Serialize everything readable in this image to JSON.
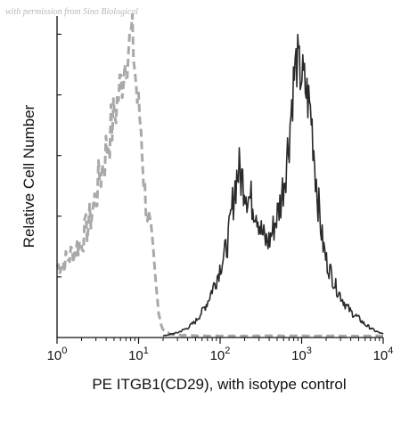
{
  "watermark": "with permission from Sino Biological",
  "chart_data": {
    "type": "line",
    "title": "",
    "xlabel": "PE ITGB1(CD29), with isotype control",
    "ylabel": "Relative Cell Number",
    "xscale": "log",
    "xlim": [
      1,
      10000
    ],
    "ylim": [
      0,
      100
    ],
    "x_tick_labels": [
      {
        "base": "10",
        "exp": "0"
      },
      {
        "base": "10",
        "exp": "1"
      },
      {
        "base": "10",
        "exp": "2"
      },
      {
        "base": "10",
        "exp": "3"
      },
      {
        "base": "10",
        "exp": "4"
      }
    ],
    "y_tick_labels_shown": false,
    "grid": false,
    "legend": "none",
    "series": [
      {
        "style": "dashed",
        "color": "#a9a9a9",
        "x": [
          1.0,
          1.3,
          1.6,
          2.0,
          2.5,
          3.0,
          3.5,
          4.0,
          4.5,
          5.0,
          5.5,
          6.0,
          6.5,
          7.0,
          7.5,
          8.0,
          8.5,
          9.0,
          9.5,
          10.0,
          10.5,
          11.0,
          11.5,
          12.0,
          13.0,
          14.0,
          15.0,
          16.0,
          17.0,
          18.0,
          19.0,
          20.0,
          22.0,
          25.0,
          30.0,
          40.0,
          60.0,
          100.0,
          200.0,
          500.0,
          1000.0,
          3000.0,
          10000.0
        ],
        "y": [
          22,
          24,
          27,
          30,
          36,
          44,
          52,
          58,
          64,
          68,
          74,
          78,
          83,
          88,
          90,
          93,
          92,
          84,
          76,
          70,
          68,
          62,
          52,
          44,
          38,
          32,
          26,
          18,
          12,
          7,
          4,
          2.5,
          1.5,
          1,
          0.8,
          0.6,
          0.5,
          0.5,
          0.5,
          0.5,
          0.5,
          0.5,
          0.5
        ]
      },
      {
        "style": "solid",
        "color": "#2a2a2a",
        "x": [
          20.0,
          30.0,
          40.0,
          50.0,
          60.0,
          70.0,
          80.0,
          90.0,
          100.0,
          110.0,
          120.0,
          130.0,
          140.0,
          150.0,
          160.0,
          170.0,
          180.0,
          190.0,
          200.0,
          220.0,
          250.0,
          280.0,
          320.0,
          360.0,
          400.0,
          450.0,
          500.0,
          550.0,
          600.0,
          650.0,
          700.0,
          750.0,
          800.0,
          850.0,
          900.0,
          950.0,
          1000.0,
          1100.0,
          1200.0,
          1300.0,
          1400.0,
          1500.0,
          1600.0,
          1800.0,
          2000.0,
          2300.0,
          2600.0,
          3000.0,
          3500.0,
          4000.0,
          5000.0,
          6000.0,
          7000.0,
          8000.0,
          9000.0,
          10000.0
        ],
        "y": [
          0.5,
          1.5,
          3,
          5,
          8,
          11,
          15,
          18,
          22,
          25,
          28,
          33,
          40,
          46,
          50,
          52,
          50,
          49,
          48,
          44,
          42,
          40,
          33,
          30,
          30,
          34,
          38,
          42,
          48,
          55,
          62,
          72,
          80,
          85,
          86,
          82,
          82,
          78,
          74,
          70,
          60,
          50,
          42,
          30,
          24,
          20,
          16,
          13,
          10,
          8,
          6,
          4,
          3,
          2,
          1.5,
          1
        ]
      }
    ]
  }
}
